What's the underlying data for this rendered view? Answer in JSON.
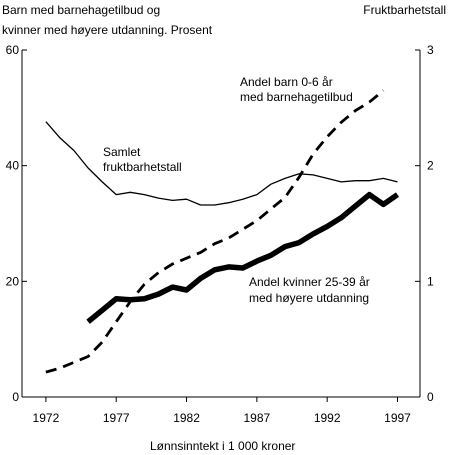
{
  "chart_data": {
    "type": "line",
    "title_left": [
      "Barn med barnehagetilbud og",
      "kvinner med høyere utdanning. Prosent"
    ],
    "title_right": "Fruktbarhetstall",
    "xlabel": "Lønnsinntekt i 1 000 kroner",
    "xlim": [
      1970.3,
      1998.6
    ],
    "xticks": [
      1972,
      1977,
      1982,
      1987,
      1992,
      1997
    ],
    "y_left": {
      "lim": [
        0,
        60
      ],
      "ticks": [
        0,
        20,
        40,
        60
      ]
    },
    "y_right": {
      "lim": [
        0,
        3
      ],
      "ticks": [
        0,
        1,
        2,
        3
      ]
    },
    "grid": false,
    "legend": "none",
    "series": [
      {
        "name": [
          "Samlet",
          "fruktbarhetstall"
        ],
        "axis": "right",
        "style": "thin",
        "x": [
          1972,
          1973,
          1974,
          1975,
          1976,
          1977,
          1978,
          1979,
          1980,
          1981,
          1982,
          1983,
          1984,
          1985,
          1986,
          1987,
          1988,
          1989,
          1990,
          1991,
          1992,
          1993,
          1994,
          1995,
          1996,
          1997
        ],
        "values": [
          2.38,
          2.24,
          2.13,
          1.98,
          1.86,
          1.75,
          1.77,
          1.75,
          1.72,
          1.7,
          1.71,
          1.66,
          1.66,
          1.68,
          1.71,
          1.75,
          1.84,
          1.89,
          1.93,
          1.92,
          1.89,
          1.86,
          1.87,
          1.87,
          1.89,
          1.86
        ]
      },
      {
        "name": [
          "Andel barn 0-6 år",
          "med barnehagetilbud"
        ],
        "axis": "left",
        "style": "dashed",
        "x": [
          1972,
          1973,
          1974,
          1975,
          1976,
          1977,
          1978,
          1979,
          1980,
          1981,
          1982,
          1983,
          1984,
          1985,
          1986,
          1987,
          1988,
          1989,
          1990,
          1991,
          1992,
          1993,
          1994,
          1995,
          1996
        ],
        "values": [
          4.3,
          5,
          6,
          7,
          9.5,
          13,
          16.5,
          19.5,
          21.5,
          23,
          24,
          25,
          26.5,
          27.5,
          29,
          30.5,
          32.5,
          34.5,
          38,
          42,
          45,
          47.5,
          49.5,
          51,
          53
        ]
      },
      {
        "name": [
          "Andel kvinner 25-39 år",
          "med høyere utdanning"
        ],
        "axis": "left",
        "style": "thick",
        "x": [
          1975,
          1976,
          1977,
          1978,
          1979,
          1980,
          1981,
          1982,
          1983,
          1984,
          1985,
          1986,
          1987,
          1988,
          1989,
          1990,
          1991,
          1992,
          1993,
          1994,
          1995,
          1996,
          1997
        ],
        "values": [
          13,
          15,
          17,
          16.8,
          17,
          17.8,
          19,
          18.5,
          20.5,
          22,
          22.5,
          22.3,
          23.5,
          24.5,
          26,
          26.7,
          28.2,
          29.5,
          31,
          33,
          35,
          33.3,
          35
        ]
      }
    ]
  }
}
